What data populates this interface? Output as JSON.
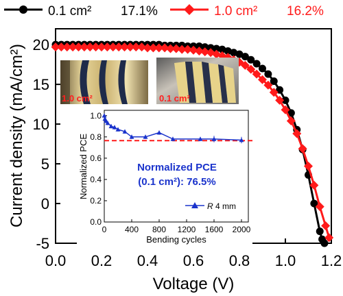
{
  "chart_data": [
    {
      "type": "line",
      "role": "main",
      "xlabel": "Voltage (V)",
      "ylabel": "Current density (mA/cm²)",
      "xlim": [
        0.0,
        1.2
      ],
      "ylim": [
        -5,
        22
      ],
      "xticks": [
        0.0,
        0.2,
        0.4,
        0.6,
        0.8,
        1.0,
        1.2
      ],
      "xtick_labels": [
        "0.0",
        "0.2",
        "0.4",
        "0.6",
        "0.8",
        "1.0",
        "1.2"
      ],
      "yticks": [
        -5,
        0,
        5,
        10,
        15,
        20
      ],
      "ytick_labels": [
        "-5",
        "0",
        "5",
        "10",
        "15",
        "20"
      ],
      "legend_position": "top",
      "grid": false,
      "series": [
        {
          "name": "0.1 cm²",
          "pce_label": "17.1%",
          "color": "#000000",
          "marker": "circle",
          "x": [
            0.0,
            0.025,
            0.05,
            0.075,
            0.1,
            0.125,
            0.15,
            0.175,
            0.2,
            0.225,
            0.25,
            0.275,
            0.3,
            0.325,
            0.35,
            0.375,
            0.4,
            0.425,
            0.45,
            0.475,
            0.5,
            0.525,
            0.55,
            0.575,
            0.6,
            0.625,
            0.65,
            0.675,
            0.7,
            0.725,
            0.75,
            0.775,
            0.8,
            0.825,
            0.85,
            0.875,
            0.9,
            0.925,
            0.95,
            0.975,
            1.0,
            1.025,
            1.05,
            1.075,
            1.1,
            1.125,
            1.15,
            1.16,
            1.17
          ],
          "y": [
            20.0,
            20.0,
            20.0,
            20.0,
            20.0,
            20.0,
            20.0,
            20.0,
            20.0,
            20.0,
            20.0,
            20.0,
            20.0,
            20.0,
            20.0,
            20.0,
            20.0,
            20.0,
            20.0,
            19.9,
            19.9,
            19.9,
            19.9,
            19.8,
            19.8,
            19.8,
            19.7,
            19.6,
            19.5,
            19.4,
            19.2,
            19.0,
            18.8,
            18.5,
            18.1,
            17.6,
            17.0,
            16.3,
            15.4,
            14.3,
            13.0,
            11.4,
            9.3,
            6.8,
            3.6,
            0.0,
            -3.5,
            -4.5,
            -5.0
          ]
        },
        {
          "name": "1.0 cm²",
          "pce_label": "16.2%",
          "color": "#ff1a1a",
          "marker": "diamond",
          "x": [
            0.0,
            0.025,
            0.05,
            0.075,
            0.1,
            0.125,
            0.15,
            0.175,
            0.2,
            0.225,
            0.25,
            0.275,
            0.3,
            0.325,
            0.35,
            0.375,
            0.4,
            0.425,
            0.45,
            0.475,
            0.5,
            0.525,
            0.55,
            0.575,
            0.6,
            0.625,
            0.65,
            0.675,
            0.7,
            0.725,
            0.75,
            0.775,
            0.8,
            0.825,
            0.85,
            0.875,
            0.9,
            0.925,
            0.95,
            0.975,
            1.0,
            1.025,
            1.05,
            1.075,
            1.1,
            1.125,
            1.15,
            1.175,
            1.19
          ],
          "y": [
            19.7,
            19.7,
            19.7,
            19.7,
            19.7,
            19.7,
            19.7,
            19.7,
            19.7,
            19.7,
            19.7,
            19.7,
            19.7,
            19.7,
            19.7,
            19.7,
            19.6,
            19.6,
            19.6,
            19.6,
            19.5,
            19.5,
            19.4,
            19.4,
            19.3,
            19.2,
            19.1,
            19.0,
            18.8,
            18.6,
            18.4,
            18.1,
            17.8,
            17.4,
            16.9,
            16.3,
            15.6,
            14.9,
            14.0,
            13.0,
            11.8,
            10.4,
            8.8,
            6.9,
            4.7,
            2.3,
            -0.4,
            -2.8,
            -4.3
          ]
        }
      ],
      "annotations": {
        "photo_left_label": "1.0 cm²",
        "photo_right_label": "0.1 cm²"
      }
    },
    {
      "type": "line",
      "role": "inset",
      "xlabel": "Bending cycles",
      "ylabel": "Normalized PCE",
      "xlim": [
        0,
        2100
      ],
      "ylim": [
        0.0,
        1.05
      ],
      "xticks": [
        0,
        400,
        800,
        1200,
        1600,
        2000
      ],
      "xtick_labels": [
        "0",
        "400",
        "800",
        "1200",
        "1600",
        "2000"
      ],
      "yticks": [
        0.0,
        0.2,
        0.4,
        0.6,
        0.8,
        1.0
      ],
      "ytick_labels": [
        "0.0",
        "0.2",
        "0.4",
        "0.6",
        "0.8",
        "1.0"
      ],
      "reference_line": 0.765,
      "annotation_line1": "Normalized PCE",
      "annotation_line2": "(0.1 cm²): 76.5%",
      "legend_position": "bottom-right",
      "series": [
        {
          "name_italic": "R",
          "name_rest": " 4 mm",
          "color": "#1a33cc",
          "marker": "triangle",
          "x": [
            0,
            10,
            25,
            50,
            100,
            150,
            200,
            300,
            400,
            600,
            800,
            1000,
            1400,
            1600,
            2000
          ],
          "y": [
            1.0,
            0.97,
            0.95,
            0.93,
            0.9,
            0.89,
            0.87,
            0.85,
            0.8,
            0.8,
            0.84,
            0.78,
            0.78,
            0.78,
            0.77
          ],
          "err": [
            0,
            0.02,
            0.02,
            0.02,
            0.02,
            0.02,
            0.02,
            0.02,
            0.02,
            0.02,
            0.02,
            0.02,
            0.02,
            0.03,
            0.03
          ]
        }
      ]
    }
  ]
}
